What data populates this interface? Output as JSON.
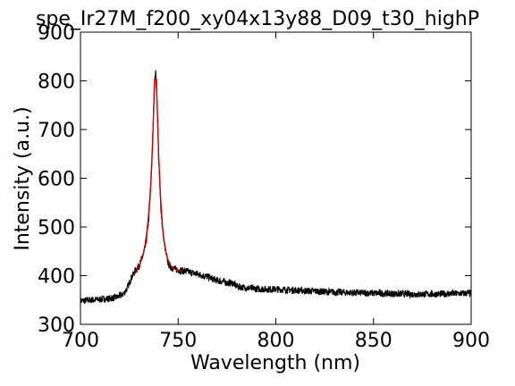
{
  "chart_data": {
    "type": "line",
    "title": "spe_Ir27M_f200_xy04x13y88_D09_t30_highP",
    "xlabel": "Wavelength (nm)",
    "ylabel": "Intensity (a.u.)",
    "xlim": [
      700,
      900
    ],
    "ylim": [
      300,
      900
    ],
    "xticks": [
      700,
      750,
      800,
      850,
      900
    ],
    "yticks": [
      300,
      400,
      500,
      600,
      700,
      800,
      900
    ],
    "grid": false,
    "series": [
      {
        "color": "#000000",
        "style": "noisy-line",
        "x": [
          700,
          705,
          710,
          715,
          718,
          720,
          722,
          724,
          726,
          728,
          730,
          731,
          732,
          733,
          734,
          735,
          736,
          737,
          737.5,
          738,
          738.5,
          739,
          739.5,
          740,
          741,
          742,
          743,
          744,
          745,
          746,
          748,
          750,
          752,
          755,
          758,
          760,
          763,
          765,
          768,
          770,
          773,
          775,
          778,
          780,
          785,
          790,
          795,
          800,
          810,
          820,
          830,
          840,
          850,
          860,
          870,
          880,
          890,
          900
        ],
        "y": [
          348,
          350,
          351,
          353,
          355,
          358,
          362,
          375,
          395,
          410,
          420,
          430,
          440,
          455,
          480,
          520,
          580,
          680,
          750,
          810,
          815,
          790,
          720,
          640,
          550,
          495,
          465,
          440,
          425,
          418,
          414,
          412,
          410,
          408,
          405,
          403,
          400,
          398,
          393,
          390,
          388,
          385,
          385,
          378,
          375,
          373,
          372,
          372,
          370,
          368,
          366,
          365,
          364,
          363,
          362,
          362,
          363,
          364
        ]
      },
      {
        "color": "#d40000",
        "style": "fit-line",
        "x": [
          727,
          728,
          729,
          730,
          731,
          732,
          733,
          734,
          735,
          736,
          737,
          737.5,
          738,
          738.5,
          739,
          739.5,
          740,
          741,
          742,
          743,
          744,
          745,
          746,
          747,
          748,
          750,
          752
        ],
        "y": [
          400,
          405,
          412,
          420,
          430,
          443,
          462,
          490,
          530,
          590,
          680,
          745,
          805,
          805,
          780,
          720,
          650,
          560,
          500,
          465,
          443,
          430,
          422,
          417,
          414,
          411,
          409
        ]
      }
    ]
  }
}
